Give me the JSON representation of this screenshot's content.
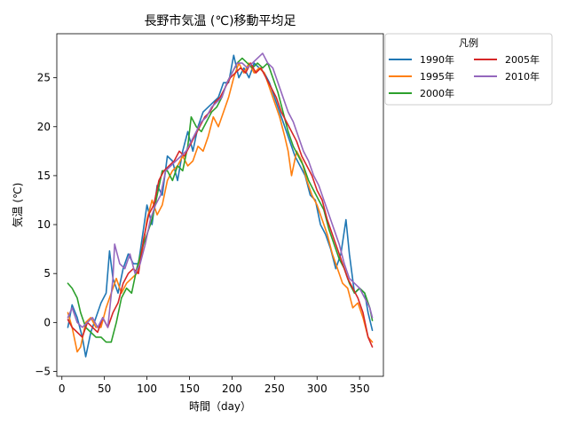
{
  "chart_data": {
    "type": "line",
    "title": "長野市気温 (℃)移動平均足",
    "xlabel": "時間（day）",
    "ylabel": "気温 (℃)",
    "xlim": [
      -6,
      378
    ],
    "ylim": [
      -5.5,
      29.5
    ],
    "xticks": [
      0,
      50,
      100,
      150,
      200,
      250,
      300,
      350
    ],
    "yticks": [
      -5,
      0,
      5,
      10,
      15,
      20,
      25
    ],
    "grid": false,
    "legend": {
      "title": "凡例",
      "placement": "outside-top-right",
      "columns": 2
    },
    "series": [
      {
        "name": "1990年",
        "color": "#1f77b4",
        "points": [
          [
            7,
            -0.5
          ],
          [
            12,
            1.8
          ],
          [
            18,
            0.5
          ],
          [
            24,
            -1.5
          ],
          [
            28,
            -3.5
          ],
          [
            34,
            -1.0
          ],
          [
            40,
            0.5
          ],
          [
            46,
            2.0
          ],
          [
            52,
            3.0
          ],
          [
            56,
            7.3
          ],
          [
            60,
            4.5
          ],
          [
            66,
            3.0
          ],
          [
            72,
            5.5
          ],
          [
            78,
            7.0
          ],
          [
            84,
            6.0
          ],
          [
            90,
            6.0
          ],
          [
            95,
            9.0
          ],
          [
            100,
            12.0
          ],
          [
            106,
            10.0
          ],
          [
            112,
            14.0
          ],
          [
            118,
            13.0
          ],
          [
            124,
            17.0
          ],
          [
            130,
            16.5
          ],
          [
            136,
            14.5
          ],
          [
            142,
            17.5
          ],
          [
            148,
            19.5
          ],
          [
            154,
            17.5
          ],
          [
            160,
            20.0
          ],
          [
            166,
            21.5
          ],
          [
            172,
            22.0
          ],
          [
            178,
            22.5
          ],
          [
            184,
            23.0
          ],
          [
            190,
            24.5
          ],
          [
            196,
            24.5
          ],
          [
            202,
            27.3
          ],
          [
            208,
            25.0
          ],
          [
            214,
            26.0
          ],
          [
            220,
            25.0
          ],
          [
            226,
            26.5
          ],
          [
            232,
            26.0
          ],
          [
            238,
            25.5
          ],
          [
            244,
            24.5
          ],
          [
            250,
            23.0
          ],
          [
            256,
            21.5
          ],
          [
            262,
            20.0
          ],
          [
            268,
            18.5
          ],
          [
            274,
            17.0
          ],
          [
            280,
            16.0
          ],
          [
            286,
            15.0
          ],
          [
            292,
            13.0
          ],
          [
            298,
            12.5
          ],
          [
            304,
            10.0
          ],
          [
            310,
            9.0
          ],
          [
            316,
            7.5
          ],
          [
            322,
            5.5
          ],
          [
            328,
            7.0
          ],
          [
            334,
            10.5
          ],
          [
            338,
            7.0
          ],
          [
            344,
            3.0
          ],
          [
            350,
            3.5
          ],
          [
            356,
            3.0
          ],
          [
            360,
            1.0
          ],
          [
            365,
            -0.8
          ]
        ]
      },
      {
        "name": "1995年",
        "color": "#ff7f0e",
        "points": [
          [
            7,
            1.0
          ],
          [
            12,
            -0.5
          ],
          [
            18,
            -3.0
          ],
          [
            22,
            -2.5
          ],
          [
            28,
            0.0
          ],
          [
            34,
            0.5
          ],
          [
            40,
            -0.5
          ],
          [
            46,
            -0.5
          ],
          [
            52,
            1.5
          ],
          [
            58,
            3.0
          ],
          [
            64,
            4.5
          ],
          [
            70,
            3.0
          ],
          [
            76,
            4.0
          ],
          [
            82,
            4.5
          ],
          [
            88,
            5.0
          ],
          [
            94,
            7.0
          ],
          [
            100,
            10.5
          ],
          [
            106,
            12.5
          ],
          [
            112,
            11.0
          ],
          [
            118,
            12.0
          ],
          [
            124,
            14.5
          ],
          [
            130,
            15.5
          ],
          [
            136,
            16.0
          ],
          [
            142,
            17.0
          ],
          [
            148,
            16.0
          ],
          [
            154,
            16.5
          ],
          [
            160,
            18.0
          ],
          [
            166,
            17.5
          ],
          [
            172,
            19.0
          ],
          [
            178,
            21.0
          ],
          [
            184,
            20.0
          ],
          [
            190,
            21.5
          ],
          [
            196,
            23.0
          ],
          [
            202,
            25.0
          ],
          [
            208,
            26.5
          ],
          [
            214,
            25.5
          ],
          [
            220,
            26.5
          ],
          [
            226,
            25.5
          ],
          [
            232,
            26.0
          ],
          [
            238,
            25.5
          ],
          [
            244,
            24.0
          ],
          [
            250,
            22.5
          ],
          [
            256,
            21.0
          ],
          [
            262,
            19.0
          ],
          [
            266,
            17.5
          ],
          [
            270,
            15.0
          ],
          [
            276,
            17.5
          ],
          [
            282,
            16.5
          ],
          [
            288,
            14.5
          ],
          [
            294,
            13.0
          ],
          [
            300,
            12.0
          ],
          [
            306,
            10.5
          ],
          [
            312,
            9.0
          ],
          [
            318,
            7.0
          ],
          [
            324,
            5.5
          ],
          [
            330,
            4.0
          ],
          [
            336,
            3.5
          ],
          [
            342,
            1.5
          ],
          [
            348,
            2.0
          ],
          [
            354,
            0.5
          ],
          [
            360,
            -1.5
          ],
          [
            365,
            -2.0
          ]
        ]
      },
      {
        "name": "2000年",
        "color": "#2ca02c",
        "points": [
          [
            7,
            4.0
          ],
          [
            12,
            3.5
          ],
          [
            18,
            2.5
          ],
          [
            22,
            1.0
          ],
          [
            28,
            -0.5
          ],
          [
            34,
            -1.0
          ],
          [
            40,
            -1.5
          ],
          [
            46,
            -1.5
          ],
          [
            52,
            -2.0
          ],
          [
            58,
            -2.0
          ],
          [
            64,
            0.0
          ],
          [
            70,
            2.5
          ],
          [
            76,
            3.5
          ],
          [
            82,
            3.0
          ],
          [
            88,
            5.5
          ],
          [
            94,
            7.5
          ],
          [
            100,
            9.0
          ],
          [
            106,
            10.5
          ],
          [
            112,
            13.0
          ],
          [
            118,
            15.5
          ],
          [
            124,
            15.5
          ],
          [
            130,
            14.5
          ],
          [
            136,
            16.0
          ],
          [
            142,
            15.5
          ],
          [
            148,
            18.0
          ],
          [
            152,
            21.0
          ],
          [
            158,
            20.0
          ],
          [
            164,
            19.5
          ],
          [
            170,
            20.5
          ],
          [
            176,
            21.5
          ],
          [
            182,
            22.0
          ],
          [
            188,
            23.0
          ],
          [
            194,
            24.5
          ],
          [
            200,
            25.5
          ],
          [
            206,
            26.5
          ],
          [
            212,
            27.0
          ],
          [
            218,
            26.5
          ],
          [
            224,
            26.0
          ],
          [
            230,
            26.5
          ],
          [
            236,
            26.0
          ],
          [
            242,
            26.5
          ],
          [
            248,
            25.0
          ],
          [
            254,
            23.5
          ],
          [
            260,
            21.5
          ],
          [
            266,
            19.5
          ],
          [
            272,
            18.0
          ],
          [
            278,
            17.0
          ],
          [
            284,
            16.0
          ],
          [
            290,
            14.5
          ],
          [
            296,
            13.5
          ],
          [
            302,
            12.5
          ],
          [
            308,
            11.5
          ],
          [
            314,
            9.5
          ],
          [
            320,
            8.0
          ],
          [
            326,
            6.5
          ],
          [
            332,
            5.5
          ],
          [
            338,
            4.0
          ],
          [
            344,
            3.0
          ],
          [
            350,
            3.5
          ],
          [
            356,
            3.0
          ],
          [
            362,
            1.5
          ],
          [
            365,
            0.2
          ]
        ]
      },
      {
        "name": "2005年",
        "color": "#d62728",
        "points": [
          [
            7,
            0.3
          ],
          [
            12,
            -0.5
          ],
          [
            18,
            -1.0
          ],
          [
            24,
            -1.5
          ],
          [
            30,
            0.0
          ],
          [
            36,
            -0.5
          ],
          [
            42,
            -1.0
          ],
          [
            48,
            0.5
          ],
          [
            54,
            -0.5
          ],
          [
            60,
            1.0
          ],
          [
            66,
            2.0
          ],
          [
            72,
            4.0
          ],
          [
            78,
            5.0
          ],
          [
            84,
            5.5
          ],
          [
            90,
            5.0
          ],
          [
            96,
            8.5
          ],
          [
            102,
            11.0
          ],
          [
            108,
            12.0
          ],
          [
            114,
            14.5
          ],
          [
            120,
            15.5
          ],
          [
            126,
            16.0
          ],
          [
            132,
            16.5
          ],
          [
            138,
            17.5
          ],
          [
            144,
            17.0
          ],
          [
            150,
            18.0
          ],
          [
            156,
            19.0
          ],
          [
            162,
            20.0
          ],
          [
            168,
            21.0
          ],
          [
            174,
            21.5
          ],
          [
            180,
            22.5
          ],
          [
            186,
            23.0
          ],
          [
            192,
            24.0
          ],
          [
            198,
            25.0
          ],
          [
            204,
            25.5
          ],
          [
            210,
            26.0
          ],
          [
            216,
            25.5
          ],
          [
            222,
            26.5
          ],
          [
            228,
            25.5
          ],
          [
            234,
            26.0
          ],
          [
            240,
            25.0
          ],
          [
            246,
            24.0
          ],
          [
            252,
            23.0
          ],
          [
            258,
            21.5
          ],
          [
            264,
            20.5
          ],
          [
            270,
            19.5
          ],
          [
            276,
            18.5
          ],
          [
            282,
            17.0
          ],
          [
            288,
            16.0
          ],
          [
            294,
            15.0
          ],
          [
            300,
            13.5
          ],
          [
            306,
            12.5
          ],
          [
            312,
            10.5
          ],
          [
            318,
            9.0
          ],
          [
            324,
            7.5
          ],
          [
            330,
            6.0
          ],
          [
            336,
            4.5
          ],
          [
            342,
            3.5
          ],
          [
            348,
            2.5
          ],
          [
            354,
            1.0
          ],
          [
            360,
            -1.5
          ],
          [
            365,
            -2.5
          ]
        ]
      },
      {
        "name": "2010年",
        "color": "#9467bd",
        "points": [
          [
            7,
            0.5
          ],
          [
            12,
            1.5
          ],
          [
            18,
            0.0
          ],
          [
            24,
            -0.5
          ],
          [
            30,
            0.0
          ],
          [
            36,
            0.5
          ],
          [
            42,
            -0.5
          ],
          [
            48,
            0.5
          ],
          [
            54,
            -0.5
          ],
          [
            60,
            4.5
          ],
          [
            62,
            8.0
          ],
          [
            68,
            6.0
          ],
          [
            74,
            5.5
          ],
          [
            80,
            7.0
          ],
          [
            86,
            5.0
          ],
          [
            92,
            6.0
          ],
          [
            98,
            8.0
          ],
          [
            104,
            10.5
          ],
          [
            110,
            12.0
          ],
          [
            116,
            13.0
          ],
          [
            122,
            15.5
          ],
          [
            128,
            16.0
          ],
          [
            134,
            16.5
          ],
          [
            140,
            17.0
          ],
          [
            146,
            17.5
          ],
          [
            152,
            18.5
          ],
          [
            158,
            19.5
          ],
          [
            164,
            20.5
          ],
          [
            170,
            21.0
          ],
          [
            176,
            22.0
          ],
          [
            182,
            22.5
          ],
          [
            188,
            23.0
          ],
          [
            194,
            24.5
          ],
          [
            200,
            25.5
          ],
          [
            206,
            26.5
          ],
          [
            212,
            26.5
          ],
          [
            218,
            26.0
          ],
          [
            224,
            26.5
          ],
          [
            230,
            27.0
          ],
          [
            236,
            27.5
          ],
          [
            242,
            26.5
          ],
          [
            248,
            26.0
          ],
          [
            254,
            24.5
          ],
          [
            260,
            23.0
          ],
          [
            266,
            21.5
          ],
          [
            272,
            20.5
          ],
          [
            278,
            19.0
          ],
          [
            284,
            17.5
          ],
          [
            290,
            16.5
          ],
          [
            296,
            15.0
          ],
          [
            302,
            14.0
          ],
          [
            308,
            12.5
          ],
          [
            314,
            11.0
          ],
          [
            320,
            9.5
          ],
          [
            326,
            8.0
          ],
          [
            332,
            6.0
          ],
          [
            338,
            4.5
          ],
          [
            344,
            4.0
          ],
          [
            350,
            3.5
          ],
          [
            356,
            2.5
          ],
          [
            362,
            1.5
          ],
          [
            365,
            0.5
          ]
        ]
      }
    ]
  }
}
